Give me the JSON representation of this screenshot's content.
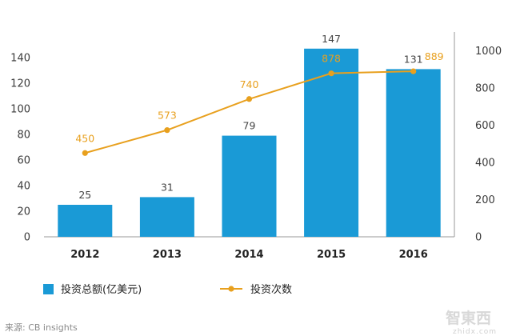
{
  "chart_data": {
    "type": "bar",
    "categories": [
      "2012",
      "2013",
      "2014",
      "2015",
      "2016"
    ],
    "series": [
      {
        "name": "投资总额(亿美元)",
        "type": "bar",
        "axis": "left",
        "color": "#1a9ad6",
        "values": [
          25,
          31,
          79,
          147,
          131
        ]
      },
      {
        "name": "投资次数",
        "type": "line",
        "axis": "right",
        "color": "#e8a01e",
        "values": [
          450,
          573,
          740,
          878,
          889
        ]
      }
    ],
    "y_left": {
      "ylim": [
        0,
        160
      ],
      "ticks": [
        0,
        20,
        40,
        60,
        80,
        100,
        120,
        140
      ]
    },
    "y_right": {
      "ylim": [
        0,
        1100
      ],
      "ticks": [
        0,
        200,
        400,
        600,
        800,
        1000
      ]
    },
    "grid": false,
    "legend_placement": "bottom"
  },
  "source_text": "来源: CB insights",
  "watermark": {
    "text": "智東西",
    "sub": "zhidx.com"
  }
}
